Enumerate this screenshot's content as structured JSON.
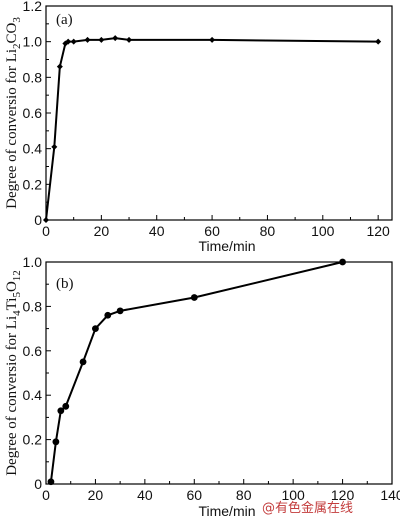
{
  "chart_data": [
    {
      "type": "line",
      "panel_label": "(a)",
      "ylabel_prefix": "Degree of conversio for Li",
      "ylabel_sub1": "2",
      "ylabel_mid": "CO",
      "ylabel_sub2": "3",
      "xlabel": "Time/min",
      "xlim": [
        0,
        125
      ],
      "ylim": [
        0,
        1.2
      ],
      "x_ticks": [
        "0",
        "20",
        "40",
        "60",
        "80",
        "100",
        "120"
      ],
      "y_ticks": [
        "0",
        "0.2",
        "0.4",
        "0.6",
        "0.8",
        "1.0",
        "1.2"
      ],
      "marker": "diamond",
      "series": [
        {
          "x": [
            0,
            3,
            5,
            7,
            8,
            10,
            15,
            20,
            25,
            30,
            60,
            120
          ],
          "y": [
            0,
            0.41,
            0.86,
            0.99,
            1.0,
            1.0,
            1.01,
            1.01,
            1.02,
            1.01,
            1.01,
            1.0
          ]
        }
      ]
    },
    {
      "type": "line",
      "panel_label": "(b)",
      "ylabel_prefix": "Degree of conversio for Li",
      "ylabel_sub1": "4",
      "ylabel_mid": "Ti",
      "ylabel_sub2": "5",
      "ylabel_mid2": "O",
      "ylabel_sub3": "12",
      "xlabel": "Time/min",
      "xlim": [
        0,
        140
      ],
      "ylim": [
        0,
        1.0
      ],
      "x_ticks": [
        "0",
        "20",
        "40",
        "60",
        "80",
        "100",
        "120",
        "140"
      ],
      "y_ticks": [
        "0",
        "0.2",
        "0.4",
        "0.6",
        "0.8",
        "1.0"
      ],
      "marker": "circle",
      "series": [
        {
          "x": [
            2,
            4,
            6,
            8,
            15,
            20,
            25,
            30,
            60,
            120
          ],
          "y": [
            0.01,
            0.19,
            0.33,
            0.35,
            0.55,
            0.7,
            0.76,
            0.78,
            0.84,
            1.0
          ]
        }
      ]
    }
  ],
  "watermark": "@有色金属在线"
}
